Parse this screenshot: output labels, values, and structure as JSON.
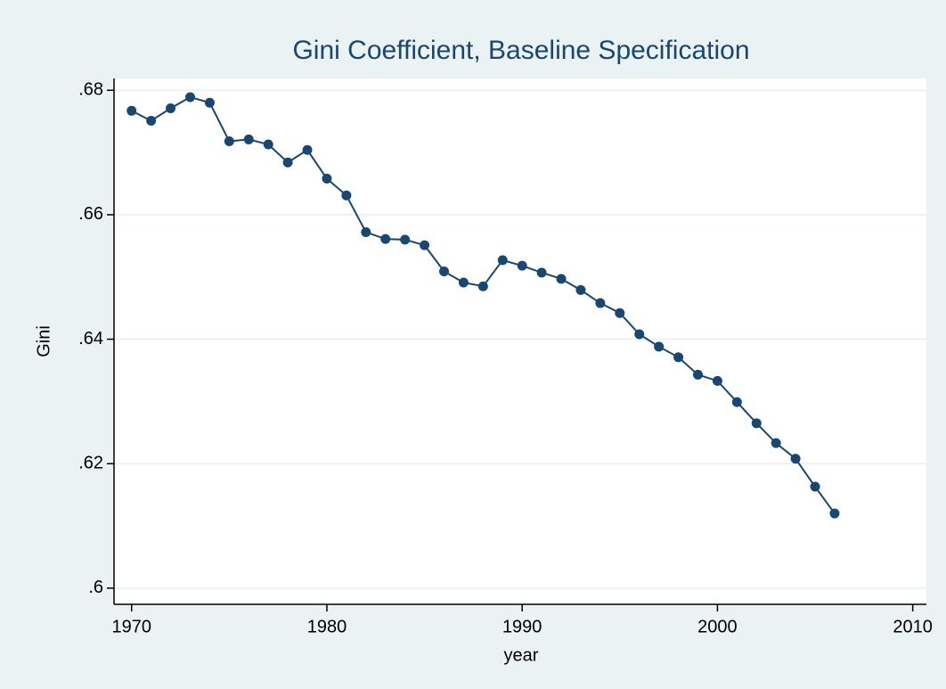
{
  "chart_data": {
    "type": "line",
    "title": "Gini Coefficient, Baseline Specification",
    "x_label": "year",
    "y_label": "Gini",
    "x": [
      1970,
      1971,
      1972,
      1973,
      1974,
      1975,
      1976,
      1977,
      1978,
      1979,
      1980,
      1981,
      1982,
      1983,
      1984,
      1985,
      1986,
      1987,
      1988,
      1989,
      1990,
      1991,
      1992,
      1993,
      1994,
      1995,
      1996,
      1997,
      1998,
      1999,
      2000,
      2001,
      2002,
      2003,
      2004,
      2005,
      2006
    ],
    "series": [
      {
        "name": "Gini",
        "color": "#1a476f",
        "values": [
          0.6767,
          0.6751,
          0.6771,
          0.6789,
          0.678,
          0.6718,
          0.6721,
          0.6713,
          0.6684,
          0.6704,
          0.6658,
          0.6631,
          0.6572,
          0.6561,
          0.656,
          0.6551,
          0.6509,
          0.6491,
          0.6485,
          0.6527,
          0.6518,
          0.6507,
          0.6497,
          0.6479,
          0.6458,
          0.6442,
          0.6408,
          0.6388,
          0.6371,
          0.6343,
          0.6333,
          0.6299,
          0.6265,
          0.6233,
          0.6208,
          0.6163,
          0.612
        ]
      }
    ],
    "xlim": [
      1969.1,
      2010.7
    ],
    "xticks": [
      1970,
      1980,
      1990,
      2000,
      2010
    ],
    "ylim": [
      0.5974,
      0.6819
    ],
    "yticks": [
      {
        "value": 0.6,
        "label": ".6"
      },
      {
        "value": 0.62,
        "label": ".62"
      },
      {
        "value": 0.64,
        "label": ".64"
      },
      {
        "value": 0.66,
        "label": ".66"
      },
      {
        "value": 0.68,
        "label": ".68"
      }
    ],
    "grid": true
  }
}
